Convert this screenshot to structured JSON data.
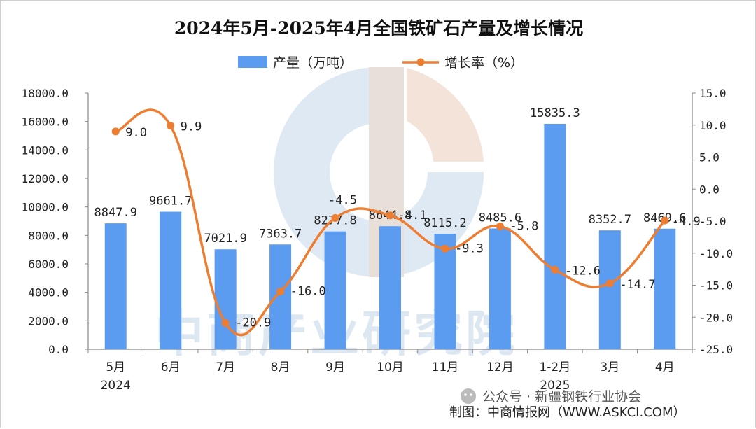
{
  "chart_data": {
    "type": "bar+line",
    "title": "2024年5月-2025年4月全国铁矿石产量及增长情况",
    "categories": [
      "5月",
      "6月",
      "7月",
      "8月",
      "9月",
      "10月",
      "11月",
      "12月",
      "1-2月",
      "3月",
      "4月"
    ],
    "category_years": [
      "2024",
      "",
      "",
      "",
      "",
      "",
      "",
      "",
      "2025",
      "",
      ""
    ],
    "series": [
      {
        "name": "产量（万吨）",
        "type": "bar",
        "axis": "left",
        "color": "#5b9bf0",
        "values": [
          8847.9,
          9661.7,
          7021.9,
          7363.7,
          8277.8,
          8644.8,
          8115.2,
          8485.6,
          15835.3,
          8352.7,
          8469.6
        ],
        "labels": [
          "8847.9",
          "9661.7",
          "7021.9",
          "7363.7",
          "8277.8",
          "8644.8",
          "8115.2",
          "8485.6",
          "15835.3",
          "8352.7",
          "8469.6"
        ]
      },
      {
        "name": "增长率（%）",
        "type": "line",
        "axis": "right",
        "color": "#ed7d31",
        "values": [
          9.0,
          9.9,
          -20.9,
          -16.0,
          -4.5,
          -4.1,
          -9.3,
          -5.8,
          -12.6,
          -14.7,
          -4.9
        ],
        "labels": [
          "9.0",
          "9.9",
          "-20.9",
          "-16.0",
          "-4.5",
          "-4.1",
          "-9.3",
          "-5.8",
          "-12.6",
          "-14.7",
          "-4.9"
        ]
      }
    ],
    "left_axis": {
      "min": 0,
      "max": 18000,
      "step": 2000,
      "ticks": [
        "0.0",
        "2000.0",
        "4000.0",
        "6000.0",
        "8000.0",
        "10000.0",
        "12000.0",
        "14000.0",
        "16000.0",
        "18000.0"
      ]
    },
    "right_axis": {
      "min": -25,
      "max": 15,
      "step": 5,
      "ticks": [
        "-25.0",
        "-20.0",
        "-15.0",
        "-10.0",
        "-5.0",
        "0.0",
        "5.0",
        "10.0",
        "15.0"
      ]
    },
    "legend_position": "top-center",
    "grid": false
  },
  "credit": "制图：中商情报网（WWW.ASKCI.COM）",
  "watermark": {
    "text": "中商产业研究院"
  },
  "social_tag": "公众号 · 新疆钢铁行业协会"
}
